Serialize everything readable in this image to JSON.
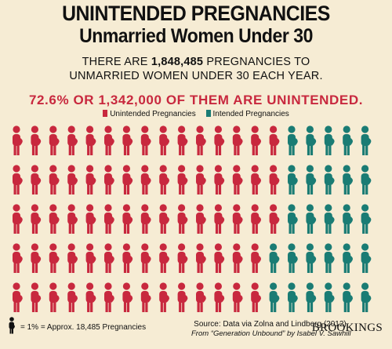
{
  "header": {
    "title_line1": "UNINTENDED PREGNANCIES",
    "title_line2": "Unmarried Women Under 30",
    "sub_line1_pre": "THERE ARE ",
    "sub_line1_num": "1,848,485",
    "sub_line1_post": " PREGNANCIES TO",
    "sub_line2": "UNMARRIED WOMEN UNDER 30 EACH YEAR.",
    "highlight": "72.6% OR 1,342,000 OF THEM ARE UNINTENDED."
  },
  "footer": {
    "key_text": "= 1% =  Approx. 18,485 Pregnancies",
    "source_line1": "Source: Data via Zolna and Lindberg (2012).",
    "source_line2": "From “Generation Unbound” by Isabel V. Sawhill",
    "brand": "BROOKINGS"
  },
  "chart_data": {
    "type": "pictogram",
    "units_total": 100,
    "unit_value_label": "Approx. 18,485 Pregnancies",
    "series": [
      {
        "name": "Unintended Pregnancies",
        "value": 73,
        "color": "#c8283e"
      },
      {
        "name": "Intended Pregnancies",
        "value": 27,
        "color": "#1a7c74"
      }
    ],
    "rows": 5,
    "columns": 20
  }
}
